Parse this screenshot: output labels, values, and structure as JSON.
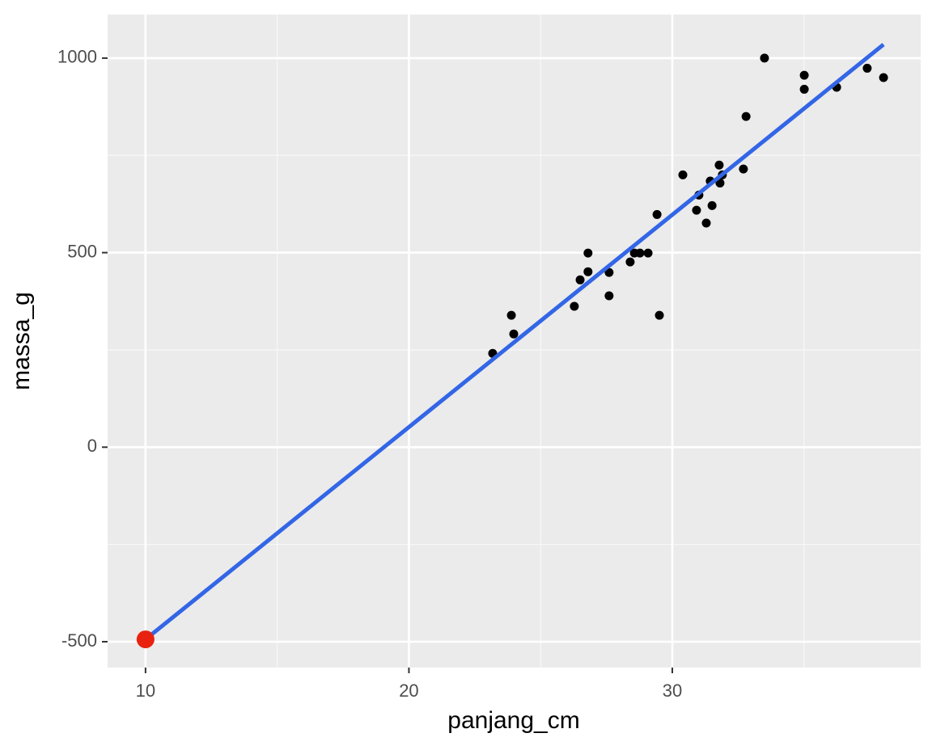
{
  "chart_data": {
    "type": "scatter",
    "x_label": "panjang_cm",
    "y_label": "massa_g",
    "xlim": [
      8.56,
      39.43
    ],
    "ylim": [
      -566.5,
      1112
    ],
    "xticks": [
      10,
      20,
      30
    ],
    "yticks": [
      -500,
      0,
      500,
      1000
    ],
    "xminor": [
      15,
      25,
      35
    ],
    "yminor": [
      -250,
      250,
      750
    ],
    "grid": true,
    "series": [
      {
        "type": "scatter",
        "color": "#000000",
        "x": [
          23.18,
          23.89,
          23.98,
          26.28,
          26.5,
          26.8,
          26.8,
          27.6,
          27.6,
          28.4,
          28.56,
          28.77,
          29.08,
          29.42,
          29.51,
          30.4,
          30.92,
          31.01,
          31.29,
          31.44,
          31.51,
          31.78,
          31.81,
          31.9,
          32.7,
          32.8,
          33.5,
          35.01,
          35.01,
          36.24,
          37.4,
          38.02
        ],
        "y": [
          241,
          339,
          291,
          362,
          430,
          499,
          451,
          449,
          389,
          476,
          499,
          499,
          499,
          598,
          339,
          700,
          609,
          648,
          576,
          684,
          621,
          725,
          679,
          700,
          715,
          850,
          1000,
          956,
          920,
          925,
          974,
          950
        ]
      },
      {
        "type": "line",
        "color": "#3366e6",
        "x": [
          10,
          38.02
        ],
        "y": [
          -494,
          1035
        ]
      },
      {
        "type": "scatter",
        "color": "#e8220f",
        "x": [
          10
        ],
        "y": [
          -494
        ]
      }
    ]
  }
}
